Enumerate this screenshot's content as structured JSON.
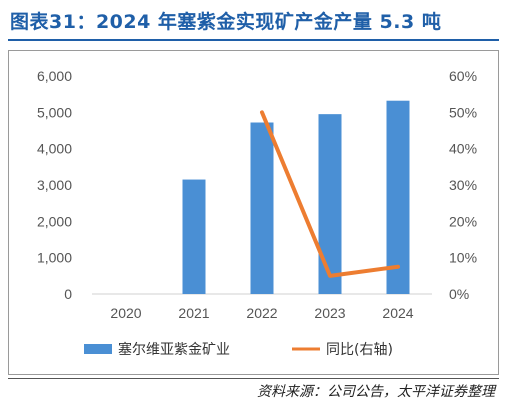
{
  "header": {
    "title": "图表31：2024 年塞紫金实现矿产金产量 5.3 吨"
  },
  "footer": {
    "source": "资料来源：公司公告，太平洋证券整理"
  },
  "colors": {
    "title": "#1f5fa8",
    "bar": "#4a8fd4",
    "line": "#ed7d31"
  },
  "chart_data": {
    "type": "bar",
    "categories": [
      "2020",
      "2021",
      "2022",
      "2023",
      "2024"
    ],
    "series": [
      {
        "name": "塞尔维亚紫金矿业",
        "kind": "bar",
        "axis": "left",
        "values": [
          null,
          3150,
          4720,
          4950,
          5320
        ]
      },
      {
        "name": "同比(右轴)",
        "kind": "line",
        "axis": "right",
        "values": [
          null,
          null,
          0.5,
          0.05,
          0.075
        ]
      }
    ],
    "y_left": {
      "min": 0,
      "max": 6000,
      "ticks": [
        "0",
        "1,000",
        "2,000",
        "3,000",
        "4,000",
        "5,000",
        "6,000"
      ]
    },
    "y_right": {
      "min": 0,
      "max": 0.6,
      "ticks": [
        "0%",
        "10%",
        "20%",
        "30%",
        "40%",
        "50%",
        "60%"
      ]
    },
    "grid": false,
    "legend_position": "bottom"
  }
}
